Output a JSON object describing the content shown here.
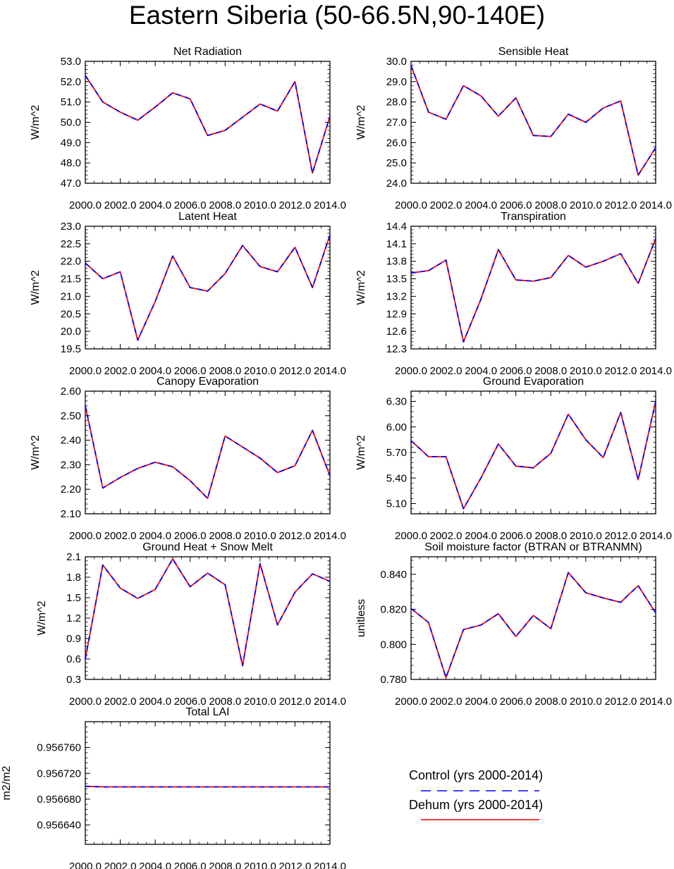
{
  "figure": {
    "title": "Eastern Siberia (50-66.5N,90-140E)"
  },
  "legend": {
    "items": [
      {
        "label": "Control (yrs 2000-2014)",
        "color": "#0000ff",
        "style": "dashed"
      },
      {
        "label": "Dehum (yrs 2000-2014)",
        "color": "#ff0000",
        "style": "solid"
      }
    ]
  },
  "chart_data": [
    {
      "type": "line",
      "title": "Net Radiation",
      "xlabel": "",
      "ylabel": "W/m^2",
      "xlim": [
        2000,
        2014
      ],
      "ylim": [
        47.0,
        53.0
      ],
      "x_ticks": [
        "2000.0",
        "2002.0",
        "2004.0",
        "2006.0",
        "2008.0",
        "2010.0",
        "2012.0",
        "2014.0"
      ],
      "y_ticks": [
        "47.0",
        "48.0",
        "49.0",
        "50.0",
        "51.0",
        "52.0",
        "53.0"
      ],
      "x": [
        2000,
        2001,
        2002,
        2003,
        2004,
        2005,
        2006,
        2007,
        2008,
        2009,
        2010,
        2011,
        2012,
        2013,
        2014
      ],
      "series": [
        {
          "name": "Control (yrs 2000-2014)",
          "values": [
            52.3,
            51.0,
            50.5,
            50.1,
            50.75,
            51.45,
            51.15,
            49.35,
            49.6,
            50.25,
            50.9,
            50.55,
            52.0,
            47.5,
            50.3
          ]
        },
        {
          "name": "Dehum (yrs 2000-2014)",
          "values": [
            52.3,
            51.0,
            50.5,
            50.1,
            50.75,
            51.45,
            51.15,
            49.35,
            49.6,
            50.25,
            50.9,
            50.55,
            52.0,
            47.5,
            50.3
          ]
        }
      ]
    },
    {
      "type": "line",
      "title": "Sensible Heat",
      "xlabel": "",
      "ylabel": "W/m^2",
      "xlim": [
        2000,
        2014
      ],
      "ylim": [
        24.0,
        30.0
      ],
      "x_ticks": [
        "2000.0",
        "2002.0",
        "2004.0",
        "2006.0",
        "2008.0",
        "2010.0",
        "2012.0",
        "2014.0"
      ],
      "y_ticks": [
        "24.0",
        "25.0",
        "26.0",
        "27.0",
        "28.0",
        "29.0",
        "30.0"
      ],
      "x": [
        2000,
        2001,
        2002,
        2003,
        2004,
        2005,
        2006,
        2007,
        2008,
        2009,
        2010,
        2011,
        2012,
        2013,
        2014
      ],
      "series": [
        {
          "name": "Control (yrs 2000-2014)",
          "values": [
            29.8,
            27.5,
            27.15,
            28.8,
            28.3,
            27.3,
            28.2,
            26.35,
            26.3,
            27.4,
            27.0,
            27.7,
            28.05,
            24.4,
            25.75
          ]
        },
        {
          "name": "Dehum (yrs 2000-2014)",
          "values": [
            29.8,
            27.5,
            27.15,
            28.8,
            28.3,
            27.3,
            28.2,
            26.35,
            26.3,
            27.4,
            27.0,
            27.7,
            28.05,
            24.4,
            25.75
          ]
        }
      ]
    },
    {
      "type": "line",
      "title": "Latent Heat",
      "xlabel": "",
      "ylabel": "W/m^2",
      "xlim": [
        2000,
        2014
      ],
      "ylim": [
        19.5,
        23.0
      ],
      "x_ticks": [
        "2000.0",
        "2002.0",
        "2004.0",
        "2006.0",
        "2008.0",
        "2010.0",
        "2012.0",
        "2014.0"
      ],
      "y_ticks": [
        "19.5",
        "20.0",
        "20.5",
        "21.0",
        "21.5",
        "22.0",
        "22.5",
        "23.0"
      ],
      "x": [
        2000,
        2001,
        2002,
        2003,
        2004,
        2005,
        2006,
        2007,
        2008,
        2009,
        2010,
        2011,
        2012,
        2013,
        2014
      ],
      "series": [
        {
          "name": "Control (yrs 2000-2014)",
          "values": [
            21.95,
            21.5,
            21.7,
            19.75,
            20.85,
            22.15,
            21.25,
            21.15,
            21.65,
            22.45,
            21.85,
            21.7,
            22.4,
            21.25,
            22.75
          ]
        },
        {
          "name": "Dehum (yrs 2000-2014)",
          "values": [
            21.95,
            21.5,
            21.7,
            19.75,
            20.85,
            22.15,
            21.25,
            21.15,
            21.65,
            22.45,
            21.85,
            21.7,
            22.4,
            21.25,
            22.75
          ]
        }
      ]
    },
    {
      "type": "line",
      "title": "Transpiration",
      "xlabel": "",
      "ylabel": "W/m^2",
      "xlim": [
        2000,
        2014
      ],
      "ylim": [
        12.3,
        14.4
      ],
      "x_ticks": [
        "2000.0",
        "2002.0",
        "2004.0",
        "2006.0",
        "2008.0",
        "2010.0",
        "2012.0",
        "2014.0"
      ],
      "y_ticks": [
        "12.3",
        "12.6",
        "12.9",
        "13.2",
        "13.5",
        "13.8",
        "14.1",
        "14.4"
      ],
      "x": [
        2000,
        2001,
        2002,
        2003,
        2004,
        2005,
        2006,
        2007,
        2008,
        2009,
        2010,
        2011,
        2012,
        2013,
        2014
      ],
      "series": [
        {
          "name": "Control (yrs 2000-2014)",
          "values": [
            13.6,
            13.64,
            13.82,
            12.42,
            13.15,
            14.0,
            13.48,
            13.46,
            13.52,
            13.9,
            13.7,
            13.8,
            13.93,
            13.42,
            14.19
          ]
        },
        {
          "name": "Dehum (yrs 2000-2014)",
          "values": [
            13.6,
            13.64,
            13.82,
            12.42,
            13.15,
            14.0,
            13.48,
            13.46,
            13.52,
            13.9,
            13.7,
            13.8,
            13.93,
            13.42,
            14.19
          ]
        }
      ]
    },
    {
      "type": "line",
      "title": "Canopy Evaporation",
      "xlabel": "",
      "ylabel": "W/m^2",
      "xlim": [
        2000,
        2014
      ],
      "ylim": [
        2.1,
        2.6
      ],
      "x_ticks": [
        "2000.0",
        "2002.0",
        "2004.0",
        "2006.0",
        "2008.0",
        "2010.0",
        "2012.0",
        "2014.0"
      ],
      "y_ticks": [
        "2.10",
        "2.20",
        "2.30",
        "2.40",
        "2.50",
        "2.60"
      ],
      "x": [
        2000,
        2001,
        2002,
        2003,
        2004,
        2005,
        2006,
        2007,
        2008,
        2009,
        2010,
        2011,
        2012,
        2013,
        2014
      ],
      "series": [
        {
          "name": "Control (yrs 2000-2014)",
          "values": [
            2.54,
            2.205,
            2.248,
            2.285,
            2.31,
            2.292,
            2.235,
            2.163,
            2.417,
            2.372,
            2.327,
            2.268,
            2.296,
            2.44,
            2.255
          ]
        },
        {
          "name": "Dehum (yrs 2000-2014)",
          "values": [
            2.54,
            2.205,
            2.248,
            2.285,
            2.31,
            2.292,
            2.235,
            2.163,
            2.417,
            2.372,
            2.327,
            2.268,
            2.296,
            2.44,
            2.255
          ]
        }
      ]
    },
    {
      "type": "line",
      "title": "Ground Evaporation",
      "xlabel": "",
      "ylabel": "W/m^2",
      "xlim": [
        2000,
        2014
      ],
      "ylim": [
        4.98,
        6.42
      ],
      "x_ticks": [
        "2000.0",
        "2002.0",
        "2004.0",
        "2006.0",
        "2008.0",
        "2010.0",
        "2012.0",
        "2014.0"
      ],
      "y_ticks": [
        "5.10",
        "5.40",
        "5.70",
        "6.00",
        "6.30"
      ],
      "x": [
        2000,
        2001,
        2002,
        2003,
        2004,
        2005,
        2006,
        2007,
        2008,
        2009,
        2010,
        2011,
        2012,
        2013,
        2014
      ],
      "series": [
        {
          "name": "Control (yrs 2000-2014)",
          "values": [
            5.84,
            5.65,
            5.65,
            5.04,
            5.4,
            5.8,
            5.54,
            5.52,
            5.69,
            6.15,
            5.85,
            5.64,
            6.17,
            5.38,
            6.3
          ]
        },
        {
          "name": "Dehum (yrs 2000-2014)",
          "values": [
            5.84,
            5.65,
            5.65,
            5.04,
            5.4,
            5.8,
            5.54,
            5.52,
            5.69,
            6.15,
            5.85,
            5.64,
            6.17,
            5.38,
            6.3
          ]
        }
      ]
    },
    {
      "type": "line",
      "title": "Ground Heat + Snow Melt",
      "xlabel": "",
      "ylabel": "W/m^2",
      "xlim": [
        2000,
        2014
      ],
      "ylim": [
        0.3,
        2.1
      ],
      "x_ticks": [
        "2000.0",
        "2002.0",
        "2004.0",
        "2006.0",
        "2008.0",
        "2010.0",
        "2012.0",
        "2014.0"
      ],
      "y_ticks": [
        "0.3",
        "0.6",
        "0.9",
        "1.2",
        "1.5",
        "1.8",
        "2.1"
      ],
      "x": [
        2000,
        2001,
        2002,
        2003,
        2004,
        2005,
        2006,
        2007,
        2008,
        2009,
        2010,
        2011,
        2012,
        2013,
        2014
      ],
      "series": [
        {
          "name": "Control (yrs 2000-2014)",
          "values": [
            0.6,
            1.98,
            1.64,
            1.49,
            1.62,
            2.07,
            1.66,
            1.86,
            1.69,
            0.5,
            2.0,
            1.1,
            1.58,
            1.85,
            1.74
          ]
        },
        {
          "name": "Dehum (yrs 2000-2014)",
          "values": [
            0.6,
            1.98,
            1.64,
            1.49,
            1.62,
            2.07,
            1.66,
            1.86,
            1.69,
            0.5,
            2.0,
            1.1,
            1.58,
            1.85,
            1.74
          ]
        }
      ]
    },
    {
      "type": "line",
      "title": "Soil moisture factor (BTRAN or BTRANMN)",
      "xlabel": "",
      "ylabel": "unitless",
      "xlim": [
        2000,
        2014
      ],
      "ylim": [
        0.78,
        0.85
      ],
      "x_ticks": [
        "2000.0",
        "2002.0",
        "2004.0",
        "2006.0",
        "2008.0",
        "2010.0",
        "2012.0",
        "2014.0"
      ],
      "y_ticks": [
        "0.780",
        "0.800",
        "0.820",
        "0.840"
      ],
      "x": [
        2000,
        2001,
        2002,
        2003,
        2004,
        2005,
        2006,
        2007,
        2008,
        2009,
        2010,
        2011,
        2012,
        2013,
        2014
      ],
      "series": [
        {
          "name": "Control (yrs 2000-2014)",
          "values": [
            0.8205,
            0.8125,
            0.781,
            0.8085,
            0.811,
            0.8175,
            0.8045,
            0.8165,
            0.809,
            0.841,
            0.8295,
            0.8265,
            0.824,
            0.8335,
            0.818
          ]
        },
        {
          "name": "Dehum (yrs 2000-2014)",
          "values": [
            0.8205,
            0.8125,
            0.781,
            0.8085,
            0.811,
            0.8175,
            0.8045,
            0.8165,
            0.809,
            0.841,
            0.8295,
            0.8265,
            0.824,
            0.8335,
            0.818
          ]
        }
      ]
    },
    {
      "type": "line",
      "title": "Total LAI",
      "xlabel": "",
      "ylabel": "m2/m2",
      "xlim": [
        2000,
        2014
      ],
      "ylim": [
        0.95661,
        0.9568
      ],
      "x_ticks": [
        "2000.0",
        "2002.0",
        "2004.0",
        "2006.0",
        "2008.0",
        "2010.0",
        "2012.0",
        "2014.0"
      ],
      "y_ticks": [
        "0.956640",
        "0.956680",
        "0.956720",
        "0.956760"
      ],
      "x": [
        2000,
        2001,
        2002,
        2003,
        2004,
        2005,
        2006,
        2007,
        2008,
        2009,
        2010,
        2011,
        2012,
        2013,
        2014
      ],
      "series": [
        {
          "name": "Control (yrs 2000-2014)",
          "values": [
            0.9567,
            0.956699,
            0.956699,
            0.956699,
            0.956699,
            0.956699,
            0.956699,
            0.956699,
            0.956699,
            0.956699,
            0.956699,
            0.956699,
            0.956699,
            0.956699,
            0.956699
          ]
        },
        {
          "name": "Dehum (yrs 2000-2014)",
          "values": [
            0.9567,
            0.956699,
            0.956699,
            0.956699,
            0.956699,
            0.956699,
            0.956699,
            0.956699,
            0.956699,
            0.956699,
            0.956699,
            0.956699,
            0.956699,
            0.956699,
            0.956699
          ]
        }
      ]
    }
  ]
}
